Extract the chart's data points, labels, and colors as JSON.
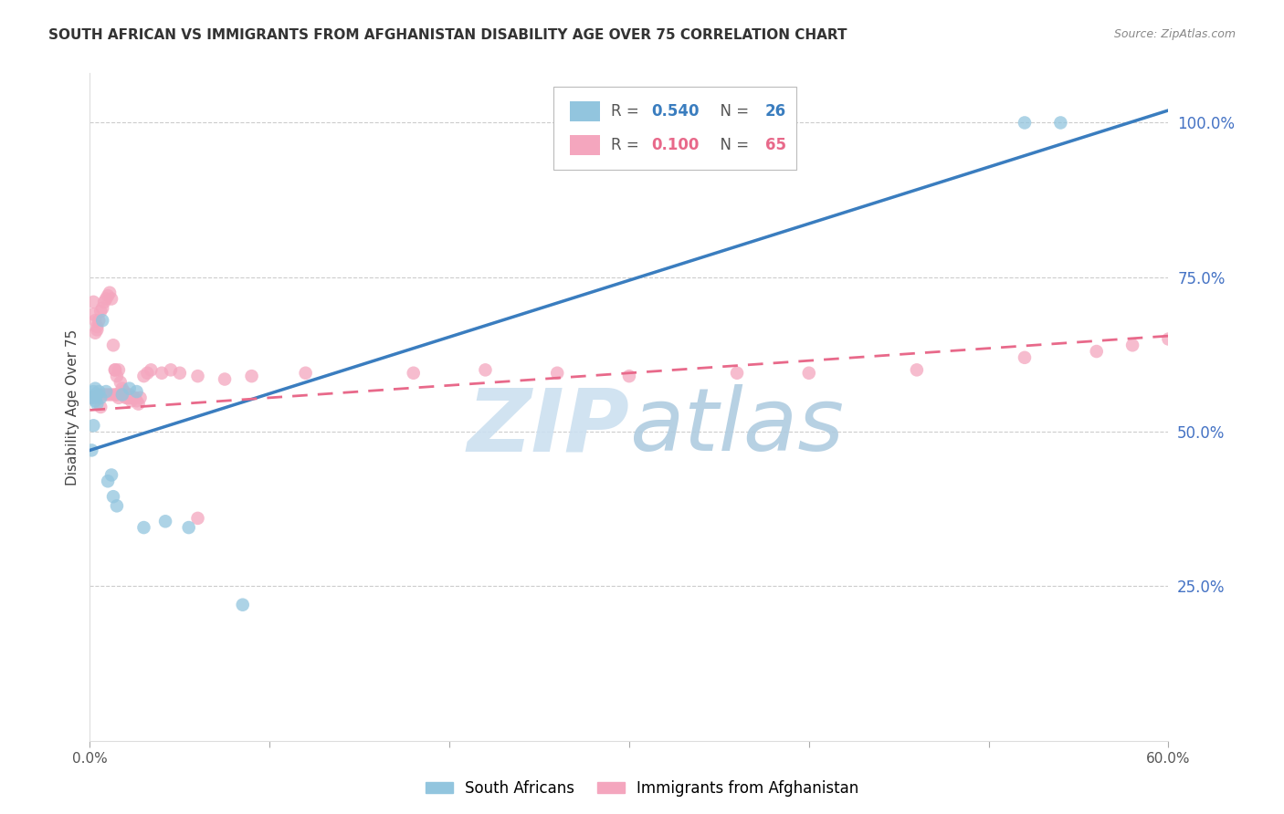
{
  "title": "SOUTH AFRICAN VS IMMIGRANTS FROM AFGHANISTAN DISABILITY AGE OVER 75 CORRELATION CHART",
  "source": "Source: ZipAtlas.com",
  "ylabel": "Disability Age Over 75",
  "xlim": [
    0.0,
    0.6
  ],
  "ylim": [
    0.0,
    1.08
  ],
  "blue_color": "#92c5de",
  "pink_color": "#f4a6be",
  "blue_line_color": "#3a7dbf",
  "pink_line_color": "#e8698a",
  "legend_R1": "0.540",
  "legend_N1": "26",
  "legend_R2": "0.100",
  "legend_N2": "65",
  "watermark": "ZIPatlas",
  "watermark_zip_color": "#c8ddf0",
  "watermark_atlas_color": "#a0bcd8",
  "axis_label_color": "#4472c4",
  "background_color": "#ffffff",
  "grid_color": "#cccccc",
  "sa_x": [
    0.001,
    0.002,
    0.002,
    0.002,
    0.003,
    0.003,
    0.003,
    0.004,
    0.004,
    0.005,
    0.006,
    0.007,
    0.009,
    0.01,
    0.012,
    0.013,
    0.015,
    0.018,
    0.022,
    0.026,
    0.03,
    0.042,
    0.055,
    0.085,
    0.52,
    0.54
  ],
  "sa_y": [
    0.47,
    0.51,
    0.555,
    0.565,
    0.55,
    0.56,
    0.57,
    0.545,
    0.56,
    0.565,
    0.555,
    0.68,
    0.565,
    0.42,
    0.43,
    0.395,
    0.38,
    0.56,
    0.57,
    0.565,
    0.345,
    0.355,
    0.345,
    0.22,
    1.0,
    1.0
  ],
  "af_x": [
    0.001,
    0.002,
    0.002,
    0.003,
    0.003,
    0.004,
    0.004,
    0.005,
    0.005,
    0.006,
    0.006,
    0.007,
    0.008,
    0.008,
    0.009,
    0.01,
    0.01,
    0.011,
    0.012,
    0.012,
    0.013,
    0.014,
    0.014,
    0.015,
    0.015,
    0.016,
    0.016,
    0.017,
    0.018,
    0.018,
    0.019,
    0.02,
    0.02,
    0.021,
    0.022,
    0.022,
    0.023,
    0.024,
    0.025,
    0.026,
    0.027,
    0.028,
    0.03,
    0.032,
    0.034,
    0.04,
    0.045,
    0.05,
    0.06,
    0.075,
    0.09,
    0.12,
    0.18,
    0.22,
    0.26,
    0.3,
    0.36,
    0.4,
    0.46,
    0.52,
    0.56,
    0.58,
    0.6,
    0.014,
    0.06
  ],
  "af_y": [
    0.555,
    0.71,
    0.69,
    0.68,
    0.66,
    0.67,
    0.665,
    0.68,
    0.56,
    0.695,
    0.54,
    0.7,
    0.71,
    0.56,
    0.715,
    0.72,
    0.56,
    0.725,
    0.715,
    0.56,
    0.64,
    0.6,
    0.56,
    0.59,
    0.56,
    0.6,
    0.555,
    0.58,
    0.57,
    0.56,
    0.565,
    0.555,
    0.56,
    0.555,
    0.555,
    0.56,
    0.55,
    0.555,
    0.555,
    0.55,
    0.545,
    0.555,
    0.59,
    0.595,
    0.6,
    0.595,
    0.6,
    0.595,
    0.59,
    0.585,
    0.59,
    0.595,
    0.595,
    0.6,
    0.595,
    0.59,
    0.595,
    0.595,
    0.6,
    0.62,
    0.63,
    0.64,
    0.65,
    0.6,
    0.36
  ],
  "blue_line_x": [
    0.0,
    0.6
  ],
  "blue_line_y": [
    0.47,
    1.02
  ],
  "pink_line_x": [
    0.0,
    0.6
  ],
  "pink_line_y": [
    0.535,
    0.655
  ]
}
